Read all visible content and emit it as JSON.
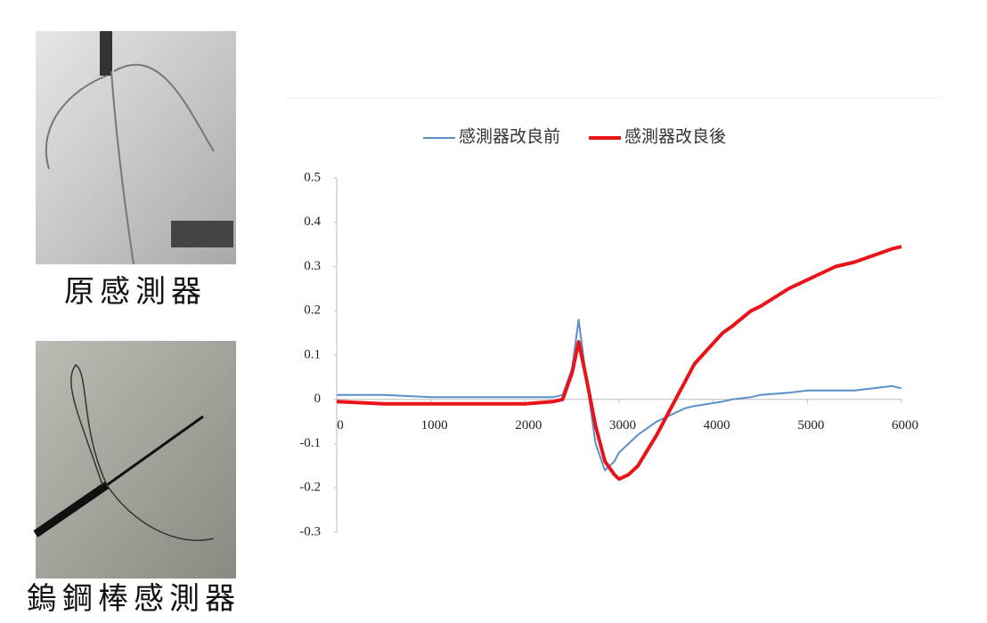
{
  "images": [
    {
      "caption": "原感測器"
    },
    {
      "caption": "鎢鋼棒感測器"
    }
  ],
  "chart_data": {
    "type": "line",
    "x": [
      0,
      500,
      1000,
      1500,
      2000,
      2300,
      2400,
      2500,
      2570,
      2650,
      2750,
      2850,
      2950,
      3000,
      3100,
      3200,
      3400,
      3550,
      3700,
      3800,
      4100,
      4200,
      4400,
      4500,
      4800,
      5000,
      5300,
      5500,
      5700,
      5900,
      6000
    ],
    "series": [
      {
        "name": "感測器改良前",
        "color": "#5b8fc9",
        "width": 2,
        "values": [
          0.01,
          0.01,
          0.005,
          0.005,
          0.005,
          0.005,
          0.01,
          0.07,
          0.18,
          0.05,
          -0.1,
          -0.16,
          -0.14,
          -0.12,
          -0.1,
          -0.08,
          -0.05,
          -0.035,
          -0.02,
          -0.015,
          -0.005,
          0,
          0.005,
          0.01,
          0.015,
          0.02,
          0.02,
          0.02,
          0.025,
          0.03,
          0.025
        ]
      },
      {
        "name": "感測器改良後",
        "color": "#e8141a",
        "width": 4,
        "values": [
          -0.005,
          -0.01,
          -0.01,
          -0.01,
          -0.01,
          -0.005,
          0,
          0.06,
          0.13,
          0.05,
          -0.06,
          -0.14,
          -0.17,
          -0.18,
          -0.17,
          -0.15,
          -0.08,
          -0.02,
          0.04,
          0.08,
          0.15,
          0.165,
          0.2,
          0.21,
          0.25,
          0.27,
          0.3,
          0.31,
          0.325,
          0.34,
          0.345
        ]
      }
    ],
    "xlim": [
      0,
      6000
    ],
    "xticks": [
      0,
      1000,
      2000,
      3000,
      4000,
      5000,
      6000
    ],
    "ylim": [
      -0.3,
      0.5
    ],
    "yticks": [
      -0.3,
      -0.2,
      -0.1,
      0,
      0.1,
      0.2,
      0.3,
      0.4,
      0.5
    ],
    "grid": false,
    "legend": "top"
  }
}
